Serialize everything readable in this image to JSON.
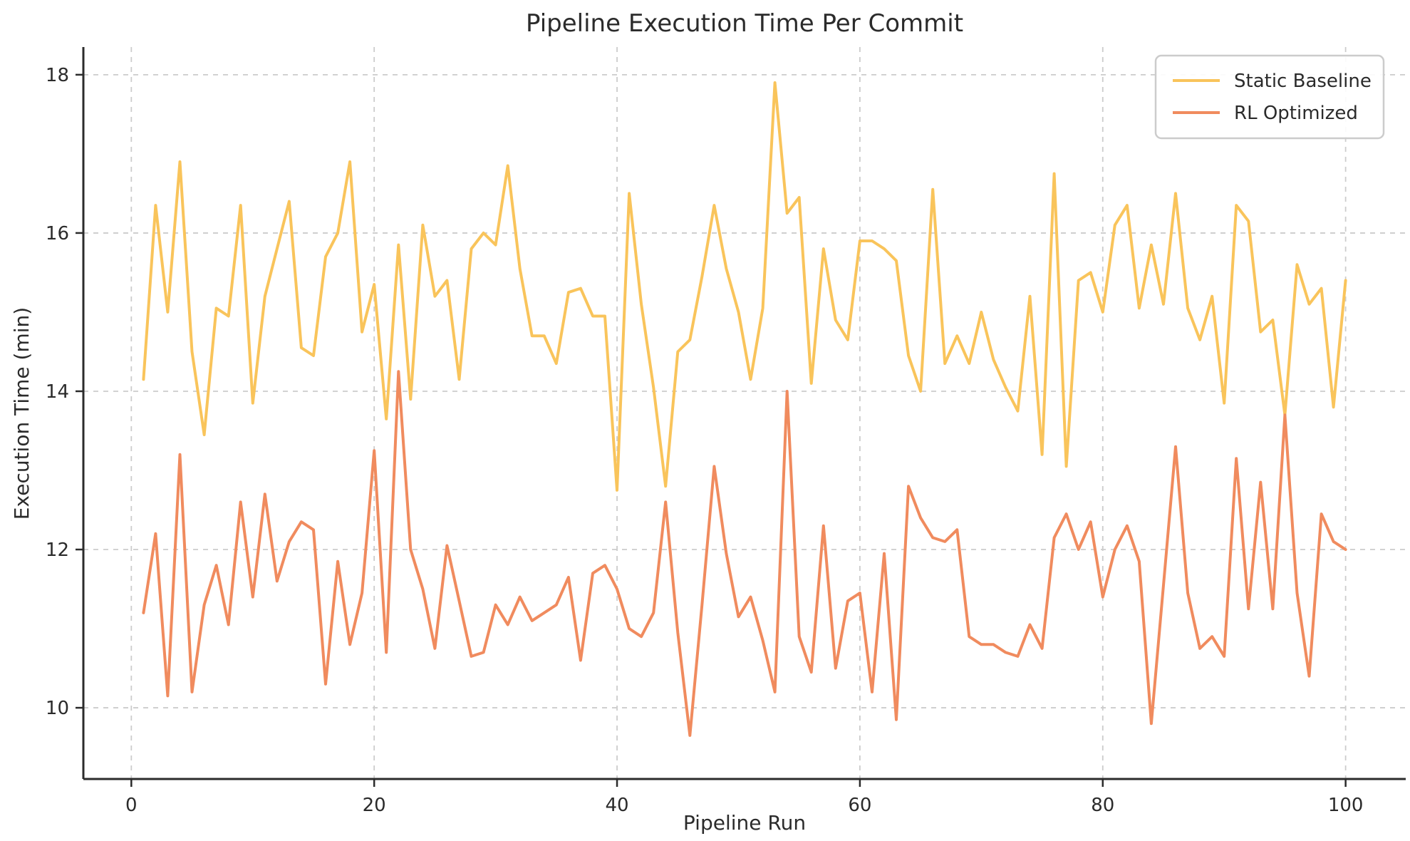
{
  "title": "Pipeline Execution Time Per Commit",
  "axes": {
    "xlabel": "Pipeline Run",
    "ylabel": "Execution Time (min)",
    "x_ticks": [
      0,
      20,
      40,
      60,
      80,
      100
    ],
    "y_ticks": [
      10,
      12,
      14,
      16,
      18
    ],
    "xlim": [
      -3.95,
      104.95
    ],
    "ylim": [
      9.1,
      18.35
    ],
    "grid_style": "dashed",
    "grid_color": "#cccccc",
    "spine_color": "#2b2b2b",
    "text_color": "#2b2b2b"
  },
  "legend": {
    "position": "top-right",
    "entries": [
      {
        "label": "Static Baseline",
        "color": "#F9C45B"
      },
      {
        "label": "RL Optimized",
        "color": "#F08B5E"
      }
    ]
  },
  "chart_data": {
    "type": "line",
    "title": "Pipeline Execution Time Per Commit",
    "xlabel": "Pipeline Run",
    "ylabel": "Execution Time (min)",
    "xlim": [
      -3.95,
      104.95
    ],
    "ylim": [
      9.1,
      18.35
    ],
    "grid": true,
    "legend_position": "upper right",
    "x": [
      1,
      2,
      3,
      4,
      5,
      6,
      7,
      8,
      9,
      10,
      11,
      12,
      13,
      14,
      15,
      16,
      17,
      18,
      19,
      20,
      21,
      22,
      23,
      24,
      25,
      26,
      27,
      28,
      29,
      30,
      31,
      32,
      33,
      34,
      35,
      36,
      37,
      38,
      39,
      40,
      41,
      42,
      43,
      44,
      45,
      46,
      47,
      48,
      49,
      50,
      51,
      52,
      53,
      54,
      55,
      56,
      57,
      58,
      59,
      60,
      61,
      62,
      63,
      64,
      65,
      66,
      67,
      68,
      69,
      70,
      71,
      72,
      73,
      74,
      75,
      76,
      77,
      78,
      79,
      80,
      81,
      82,
      83,
      84,
      85,
      86,
      87,
      88,
      89,
      90,
      91,
      92,
      93,
      94,
      95,
      96,
      97,
      98,
      99,
      100
    ],
    "series": [
      {
        "name": "Static Baseline",
        "color": "#F9C45B",
        "values": [
          14.15,
          16.35,
          15.0,
          16.9,
          14.5,
          13.45,
          15.05,
          14.95,
          16.35,
          13.85,
          15.2,
          15.8,
          16.4,
          14.55,
          14.45,
          15.7,
          16.0,
          16.9,
          14.75,
          15.35,
          13.65,
          15.85,
          13.9,
          16.1,
          15.2,
          15.4,
          14.15,
          15.8,
          16.0,
          15.85,
          16.85,
          15.55,
          14.7,
          14.7,
          14.35,
          15.25,
          15.3,
          14.95,
          14.95,
          12.75,
          16.5,
          15.1,
          14.05,
          12.8,
          14.5,
          14.65,
          15.45,
          16.35,
          15.55,
          15.0,
          14.15,
          15.05,
          17.9,
          16.25,
          16.45,
          14.1,
          15.8,
          14.9,
          14.65,
          15.9,
          15.9,
          15.8,
          15.65,
          14.45,
          14.0,
          16.55,
          14.35,
          14.7,
          14.35,
          15.0,
          14.4,
          14.05,
          13.75,
          15.2,
          13.2,
          16.75,
          13.05,
          15.4,
          15.5,
          15.0,
          16.1,
          16.35,
          15.05,
          15.85,
          15.1,
          16.5,
          15.05,
          14.65,
          15.2,
          13.85,
          16.35,
          16.15,
          14.75,
          14.9,
          13.7,
          15.6,
          15.1,
          15.3,
          13.8,
          15.4
        ]
      },
      {
        "name": "RL Optimized",
        "color": "#F08B5E",
        "values": [
          11.2,
          12.2,
          10.15,
          13.2,
          10.2,
          11.3,
          11.8,
          11.05,
          12.6,
          11.4,
          12.7,
          11.6,
          12.1,
          12.35,
          12.25,
          10.3,
          11.85,
          10.8,
          11.45,
          13.25,
          10.7,
          14.25,
          12.0,
          11.5,
          10.75,
          12.05,
          11.35,
          10.65,
          10.7,
          11.3,
          11.05,
          11.4,
          11.1,
          11.2,
          11.3,
          11.65,
          10.6,
          11.7,
          11.8,
          11.5,
          11.0,
          10.9,
          11.2,
          12.6,
          10.95,
          9.65,
          11.3,
          13.05,
          11.95,
          11.15,
          11.4,
          10.85,
          10.2,
          14.0,
          10.9,
          10.45,
          12.3,
          10.5,
          11.35,
          11.45,
          10.2,
          11.95,
          9.85,
          12.8,
          12.4,
          12.15,
          12.1,
          12.25,
          10.9,
          10.8,
          10.8,
          10.7,
          10.65,
          11.05,
          10.75,
          12.15,
          12.45,
          12.0,
          12.35,
          11.4,
          12.0,
          12.3,
          11.85,
          9.8,
          11.55,
          13.3,
          11.45,
          10.75,
          10.9,
          10.65,
          13.15,
          11.25,
          12.85,
          11.25,
          13.7,
          11.45,
          10.4,
          12.45,
          12.1,
          12.0
        ]
      }
    ]
  }
}
